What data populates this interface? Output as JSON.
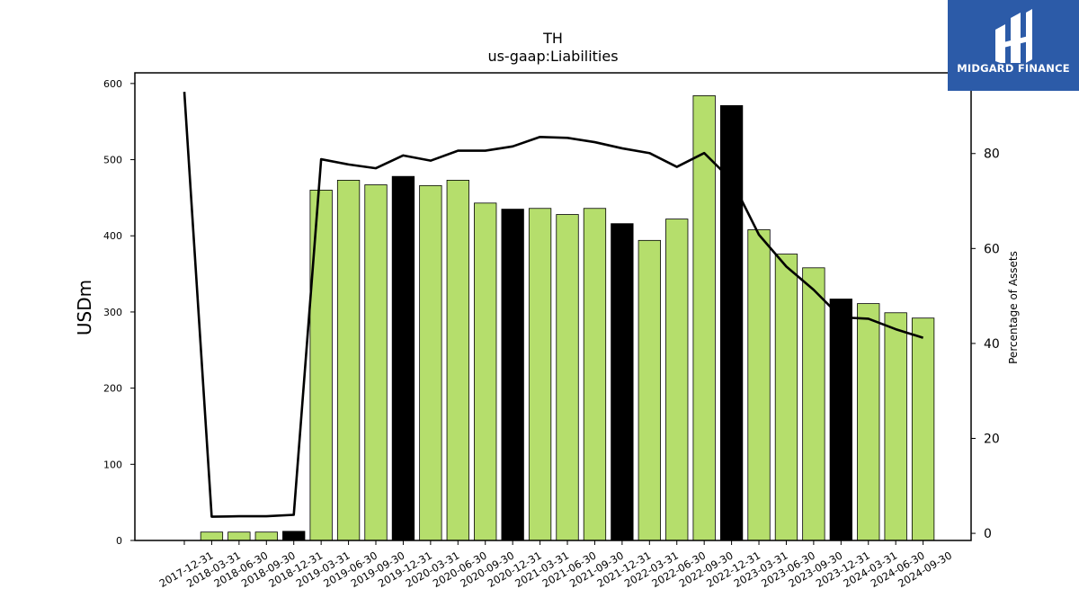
{
  "brand": {
    "name": "MIDGARD FINANCE",
    "bg_color": "#2c5ba8"
  },
  "chart_data": {
    "type": "bar",
    "title": "TH",
    "subtitle": "us-gaap:Liabilities",
    "ylabel": "USDm",
    "y2label": "Percentage of Assets",
    "ylim": [
      0,
      614
    ],
    "y2lim": [
      -1.5,
      97
    ],
    "yticks": [
      0,
      100,
      200,
      300,
      400,
      500,
      600
    ],
    "y2ticks": [
      0,
      20,
      40,
      60,
      80
    ],
    "categories": [
      "2017-12-31",
      "2018-03-31",
      "2018-06-30",
      "2018-09-30",
      "2018-12-31",
      "2019-03-31",
      "2019-06-30",
      "2019-09-30",
      "2019-12-31",
      "2020-03-31",
      "2020-06-30",
      "2020-09-30",
      "2020-12-31",
      "2021-03-31",
      "2021-06-30",
      "2021-09-30",
      "2021-12-31",
      "2022-03-31",
      "2022-06-30",
      "2022-09-30",
      "2022-12-31",
      "2023-03-31",
      "2023-06-30",
      "2023-09-30",
      "2023-12-31",
      "2024-03-31",
      "2024-06-30",
      "2024-09-30"
    ],
    "series": [
      {
        "type": "bar",
        "values": [
          null,
          11,
          11,
          11,
          12,
          460,
          473,
          467,
          478,
          466,
          473,
          443,
          435,
          436,
          428,
          436,
          416,
          394,
          422,
          584,
          571,
          408,
          376,
          358,
          317,
          311,
          299,
          292
        ],
        "highlight": [
          false,
          false,
          false,
          false,
          true,
          false,
          false,
          false,
          true,
          false,
          false,
          false,
          true,
          false,
          false,
          false,
          true,
          false,
          false,
          false,
          true,
          false,
          false,
          false,
          true,
          false,
          false,
          false
        ],
        "color": "#b5de6c",
        "highlight_color": "#000000"
      },
      {
        "type": "line",
        "axis": "secondary",
        "values": [
          93,
          3.5,
          3.6,
          3.6,
          3.9,
          78.8,
          77.7,
          76.9,
          79.6,
          78.5,
          80.6,
          80.6,
          81.5,
          83.5,
          83.3,
          82.4,
          81.1,
          80.1,
          77.2,
          80.1,
          74.4,
          62.9,
          56.2,
          51.3,
          45.5,
          45.2,
          43.0,
          41.2
        ],
        "color": "#000000"
      }
    ]
  }
}
